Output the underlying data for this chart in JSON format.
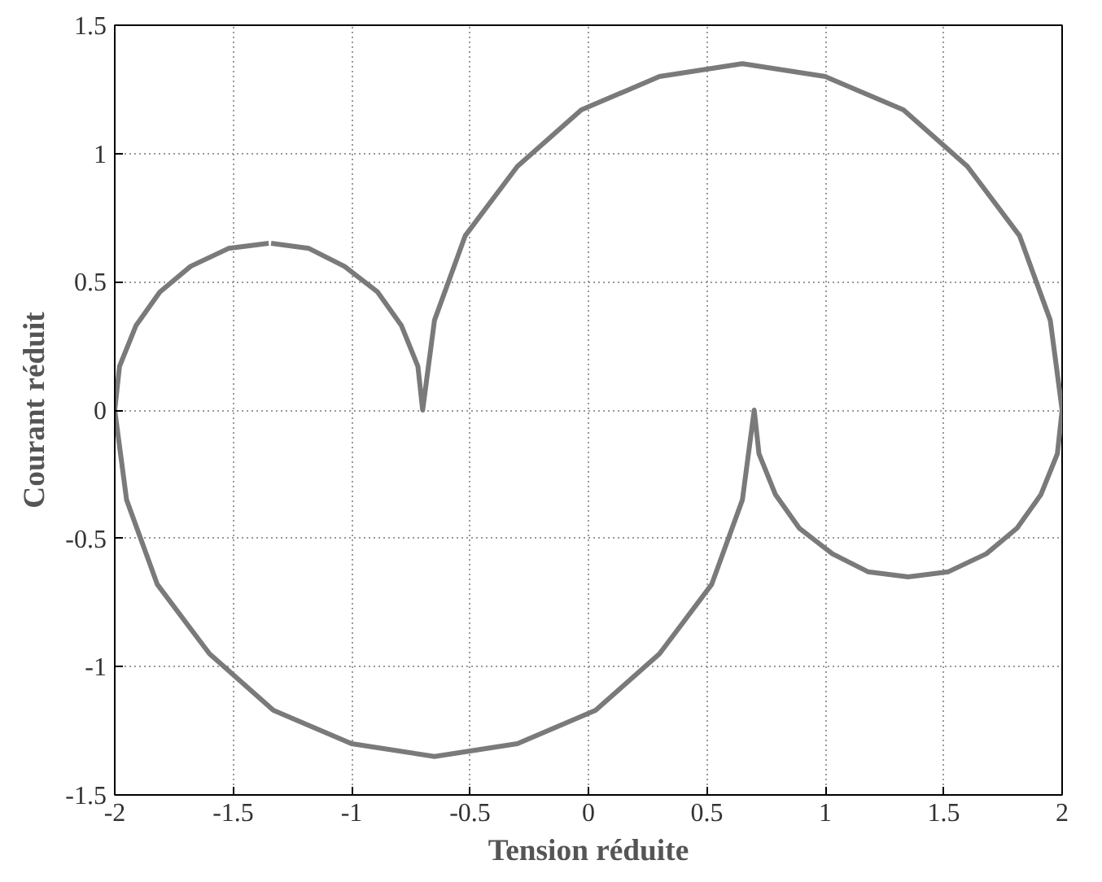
{
  "chart_data": {
    "type": "line",
    "xlabel": "Tension réduite",
    "ylabel": "Courant réduit",
    "xlim": [
      -2,
      2
    ],
    "ylim": [
      -1.5,
      1.5
    ],
    "xticks": [
      -2,
      -1.5,
      -1,
      -0.5,
      0,
      0.5,
      1,
      1.5,
      2
    ],
    "yticks": [
      -1.5,
      -1,
      -0.5,
      0,
      0.5,
      1,
      1.5
    ],
    "grid": true,
    "marker": "none",
    "line_style": "solid",
    "series": [
      {
        "color": "#7a7a7a",
        "x": [
          -1.35,
          -1.52,
          -1.68,
          -1.81,
          -1.91,
          -1.98,
          -2.0,
          -1.95,
          -1.82,
          -1.6,
          -1.33,
          -1.0,
          -0.65,
          -0.3,
          0.03,
          0.3,
          0.52,
          0.65,
          0.7,
          0.72,
          0.79,
          0.89,
          1.03,
          1.18,
          1.35,
          1.52,
          1.68,
          1.81,
          1.91,
          1.98,
          2.0,
          1.95,
          1.82,
          1.6,
          1.33,
          1.0,
          0.65,
          0.3,
          -0.03,
          -0.3,
          -0.52,
          -0.65,
          -0.7,
          -0.72,
          -0.79,
          -0.89,
          -1.03,
          -1.18,
          -1.34
        ],
        "values": [
          0.65,
          0.63,
          0.56,
          0.46,
          0.33,
          0.17,
          0,
          -0.35,
          -0.68,
          -0.95,
          -1.17,
          -1.3,
          -1.35,
          -1.3,
          -1.17,
          -0.95,
          -0.68,
          -0.35,
          0,
          -0.17,
          -0.33,
          -0.46,
          -0.56,
          -0.63,
          -0.65,
          -0.63,
          -0.56,
          -0.46,
          -0.33,
          -0.17,
          0,
          0.35,
          0.68,
          0.95,
          1.17,
          1.3,
          1.35,
          1.3,
          1.17,
          0.95,
          0.68,
          0.35,
          0,
          0.17,
          0.33,
          0.46,
          0.56,
          0.63,
          0.65
        ]
      }
    ]
  }
}
